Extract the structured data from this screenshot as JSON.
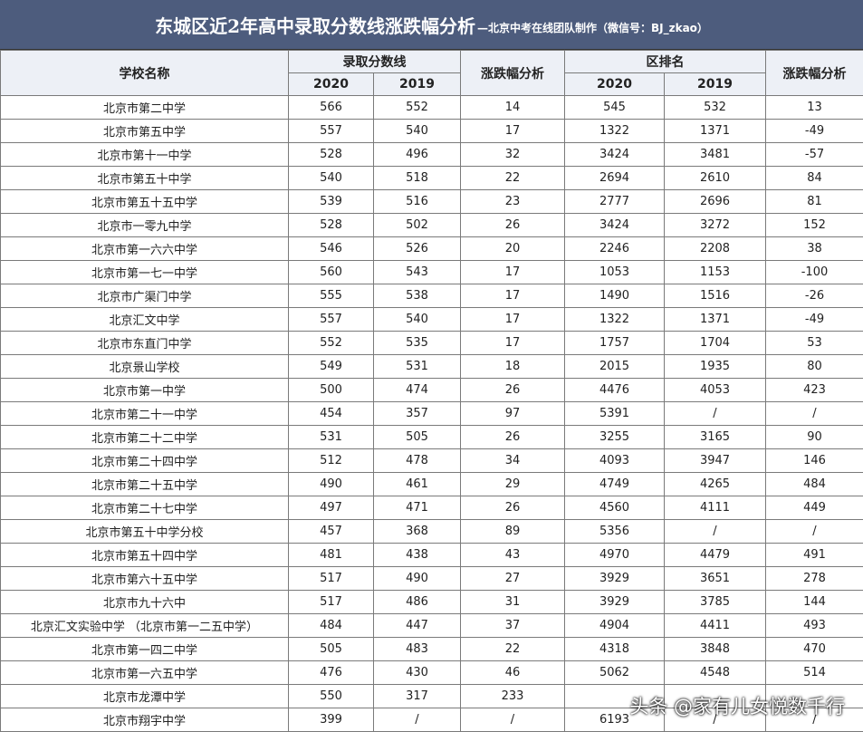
{
  "header": {
    "title": "东城区近2年高中录取分数线涨跌幅分析",
    "subtitle": "—北京中考在线团队制作（微信号：BJ_zkao）"
  },
  "table": {
    "head": {
      "school": "学校名称",
      "score": "录取分数线",
      "score_change": "涨跌幅分析",
      "rank": "区排名",
      "rank_change": "涨跌幅分析",
      "years": [
        "2020",
        "2019"
      ]
    },
    "rows": [
      [
        "北京市第二中学",
        566,
        552,
        14,
        545,
        532,
        13
      ],
      [
        "北京市第五中学",
        557,
        540,
        17,
        1322,
        1371,
        -49
      ],
      [
        "北京市第十一中学",
        528,
        496,
        32,
        3424,
        3481,
        -57
      ],
      [
        "北京市第五十中学",
        540,
        518,
        22,
        2694,
        2610,
        84
      ],
      [
        "北京市第五十五中学",
        539,
        516,
        23,
        2777,
        2696,
        81
      ],
      [
        "北京市一零九中学",
        528,
        502,
        26,
        3424,
        3272,
        152
      ],
      [
        "北京市第一六六中学",
        546,
        526,
        20,
        2246,
        2208,
        38
      ],
      [
        "北京市第一七一中学",
        560,
        543,
        17,
        1053,
        1153,
        -100
      ],
      [
        "北京市广渠门中学",
        555,
        538,
        17,
        1490,
        1516,
        -26
      ],
      [
        "北京汇文中学",
        557,
        540,
        17,
        1322,
        1371,
        -49
      ],
      [
        "北京市东直门中学",
        552,
        535,
        17,
        1757,
        1704,
        53
      ],
      [
        "北京景山学校",
        549,
        531,
        18,
        2015,
        1935,
        80
      ],
      [
        "北京市第一中学",
        500,
        474,
        26,
        4476,
        4053,
        423
      ],
      [
        "北京市第二十一中学",
        454,
        357,
        97,
        5391,
        "/",
        "/"
      ],
      [
        "北京市第二十二中学",
        531,
        505,
        26,
        3255,
        3165,
        90
      ],
      [
        "北京市第二十四中学",
        512,
        478,
        34,
        4093,
        3947,
        146
      ],
      [
        "北京市第二十五中学",
        490,
        461,
        29,
        4749,
        4265,
        484
      ],
      [
        "北京市第二十七中学",
        497,
        471,
        26,
        4560,
        4111,
        449
      ],
      [
        "北京市第五十中学分校",
        457,
        368,
        89,
        5356,
        "/",
        "/"
      ],
      [
        "北京市第五十四中学",
        481,
        438,
        43,
        4970,
        4479,
        491
      ],
      [
        "北京市第六十五中学",
        517,
        490,
        27,
        3929,
        3651,
        278
      ],
      [
        "北京市九十六中",
        517,
        486,
        31,
        3929,
        3785,
        144
      ],
      [
        "北京汇文实验中学 （北京市第一二五中学）",
        484,
        447,
        37,
        4904,
        4411,
        493
      ],
      [
        "北京市第一四二中学",
        505,
        483,
        22,
        4318,
        3848,
        470
      ],
      [
        "北京市第一六五中学",
        476,
        430,
        46,
        5062,
        4548,
        514
      ],
      [
        "北京市龙潭中学",
        550,
        317,
        233,
        null,
        null,
        null
      ],
      [
        "北京市翔宇中学",
        399,
        "/",
        "/",
        6193,
        "/",
        "/"
      ]
    ]
  },
  "watermark": "头条 @家有儿女悦数千行"
}
